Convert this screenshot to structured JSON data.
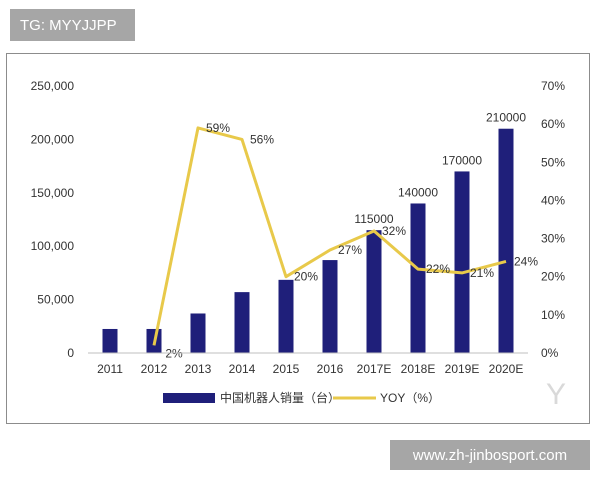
{
  "header_tag": "TG: MYYJJPP",
  "footer_tag": "www.zh-jinbosport.com",
  "watermark": "Y",
  "colors": {
    "bar": "#1f1f7a",
    "line": "#e8c94a",
    "axis_text": "#333333",
    "tag_bg": "#a6a6a6"
  },
  "chart_data": {
    "type": "bar",
    "categories": [
      "2011",
      "2012",
      "2013",
      "2014",
      "2015",
      "2016",
      "2017E",
      "2018E",
      "2019E",
      "2020E"
    ],
    "series": [
      {
        "name": "中国机器人销量（台）",
        "type": "bar",
        "axis": "left",
        "values": [
          22500,
          22500,
          37000,
          57000,
          68500,
          87000,
          115000,
          140000,
          170000,
          210000
        ],
        "labels": [
          "",
          "",
          "",
          "",
          "",
          "",
          "115000",
          "140000",
          "170000",
          "210000"
        ]
      },
      {
        "name": "YOY（%）",
        "type": "line",
        "axis": "right",
        "values": [
          null,
          2,
          59,
          56,
          20,
          27,
          32,
          22,
          21,
          24
        ],
        "labels": [
          "",
          "2%",
          "59%",
          "56%",
          "20%",
          "27%",
          "32%",
          "22%",
          "21%",
          "24%"
        ]
      }
    ],
    "y_left": {
      "min": 0,
      "max": 250000,
      "ticks": [
        "0",
        "50,000",
        "100,000",
        "150,000",
        "200,000",
        "250,000"
      ]
    },
    "y_right": {
      "min": 0,
      "max": 70,
      "ticks": [
        "0%",
        "10%",
        "20%",
        "30%",
        "40%",
        "50%",
        "60%",
        "70%"
      ]
    },
    "legend_position": "bottom",
    "grid": false
  }
}
